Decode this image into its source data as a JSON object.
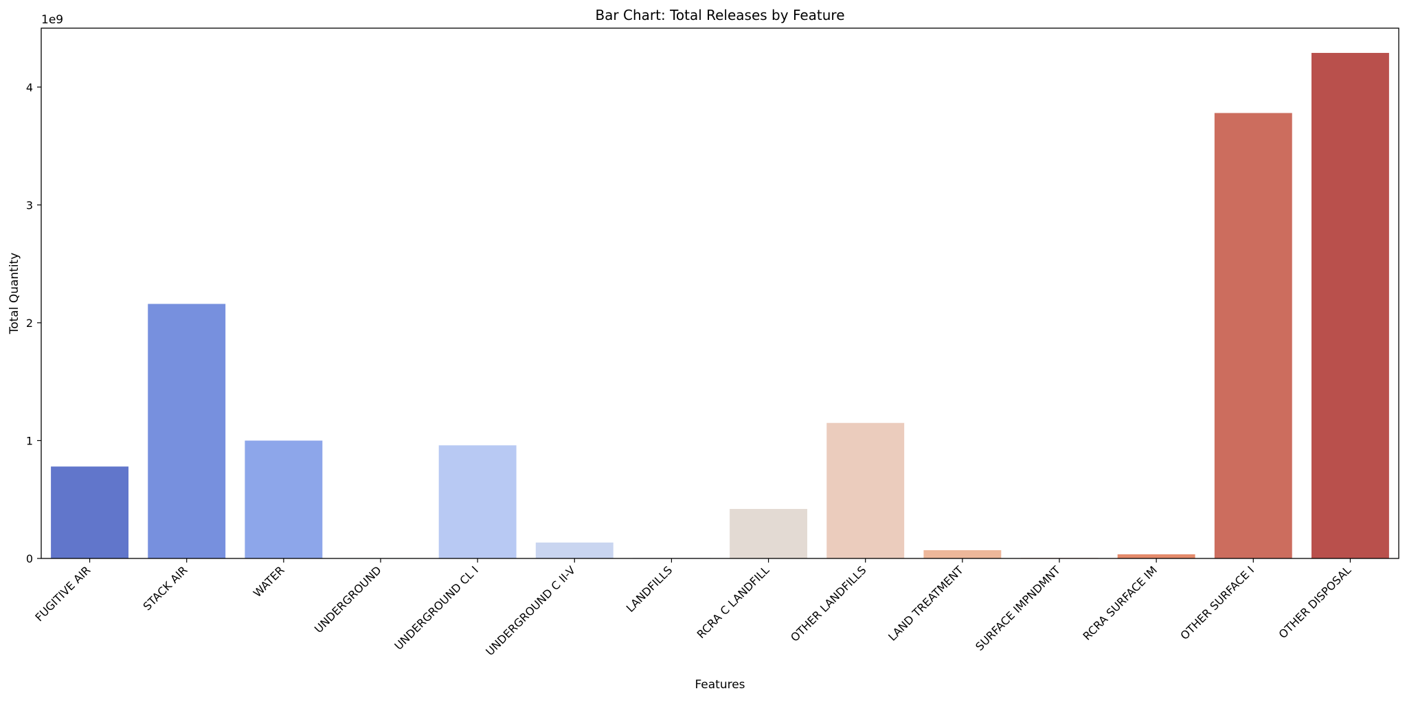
{
  "chart_data": {
    "type": "bar",
    "title": "Bar Chart: Total Releases by Feature",
    "xlabel": "Features",
    "ylabel": "Total Quantity",
    "y_offset_label": "1e9",
    "y_scale_factor": 1000000000,
    "ylim": [
      0,
      4.5
    ],
    "yticks": [
      0,
      1,
      2,
      3,
      4
    ],
    "grid": false,
    "legend": "none",
    "categories": [
      "FUGITIVE AIR",
      "STACK AIR",
      "WATER",
      "UNDERGROUND",
      "UNDERGROUND CL I",
      "UNDERGROUND C II-V",
      "LANDFILLS",
      "RCRA C LANDFILL",
      "OTHER LANDFILLS",
      "LAND TREATMENT",
      "SURFACE IMPNDMNT",
      "RCRA SURFACE IM",
      "OTHER SURFACE I",
      "OTHER DISPOSAL"
    ],
    "values": [
      0.78,
      2.16,
      1.0,
      0.003,
      0.96,
      0.135,
      0.004,
      0.42,
      1.15,
      0.07,
      0.004,
      0.035,
      3.78,
      4.29
    ],
    "colors": [
      "#6176cb",
      "#7790de",
      "#8da6ea",
      "#a3bbf2",
      "#b8c9f3",
      "#c9d5f0",
      "#d8dbe4",
      "#e3dad3",
      "#ebccbd",
      "#edb79a",
      "#e9a184",
      "#e48b6c",
      "#cc6d5e",
      "#b9504c"
    ]
  }
}
